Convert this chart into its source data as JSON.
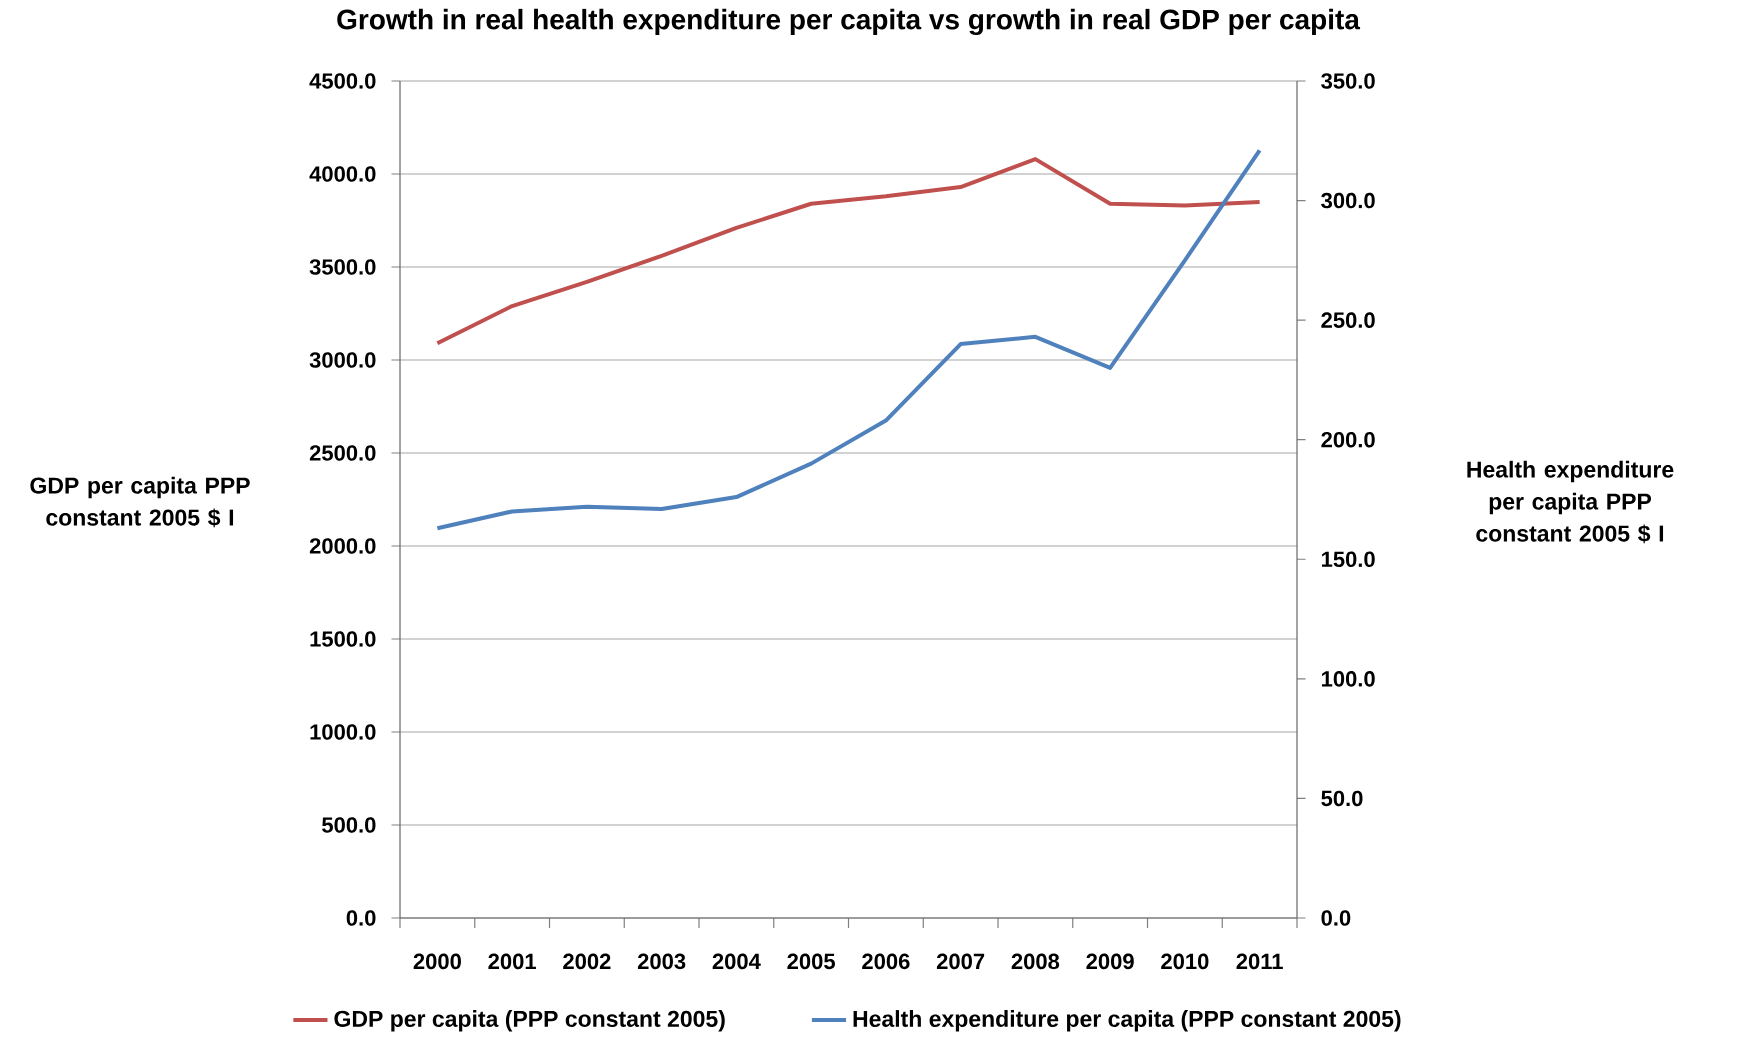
{
  "chart_data": {
    "type": "line",
    "title": "Growth in real health expenditure per capita vs growth in real GDP per capita",
    "ylabel": "GDP per capita PPP constant 2005 $ I",
    "y2label": "Health expenditure per capita PPP constant 2005 $ I",
    "categories": [
      "2000",
      "2001",
      "2002",
      "2003",
      "2004",
      "2005",
      "2006",
      "2007",
      "2008",
      "2009",
      "2010",
      "2011"
    ],
    "series": [
      {
        "name": "GDP per capita (PPP constant 2005)",
        "color": "#c0504d",
        "values": [
          3090,
          3290,
          3420,
          3560,
          3710,
          3840,
          3880,
          3930,
          4080,
          3840,
          3830,
          3850
        ]
      },
      {
        "name": "Health expenditure per capita (PPP constant 2005)",
        "color": "#4f81bd",
        "axis": "y2",
        "values": [
          163,
          170,
          172,
          171,
          176,
          190,
          208,
          240,
          243,
          230,
          275,
          321
        ]
      }
    ],
    "ylim": [
      0,
      4500
    ],
    "yticks": [
      {
        "value": 0,
        "label": "0.0"
      },
      {
        "value": 500,
        "label": "500.0"
      },
      {
        "value": 1000,
        "label": "1000.0"
      },
      {
        "value": 1500,
        "label": "1500.0"
      },
      {
        "value": 2000,
        "label": "2000.0"
      },
      {
        "value": 2500,
        "label": "2500.0"
      },
      {
        "value": 3000,
        "label": "3000.0"
      },
      {
        "value": 3500,
        "label": "3500.0"
      },
      {
        "value": 4000,
        "label": "4000.0"
      },
      {
        "value": 4500,
        "label": "4500.0"
      }
    ],
    "y2lim": [
      0,
      350
    ],
    "y2ticks": [
      {
        "value": 0,
        "label": "0.0"
      },
      {
        "value": 50,
        "label": "50.0"
      },
      {
        "value": 100,
        "label": "100.0"
      },
      {
        "value": 150,
        "label": "150.0"
      },
      {
        "value": 200,
        "label": "200.0"
      },
      {
        "value": 250,
        "label": "250.0"
      },
      {
        "value": 300,
        "label": "300.0"
      },
      {
        "value": 350,
        "label": "350.0"
      }
    ],
    "grid": "y",
    "legend": "bottom",
    "marker": "none",
    "line_style": "solid"
  }
}
